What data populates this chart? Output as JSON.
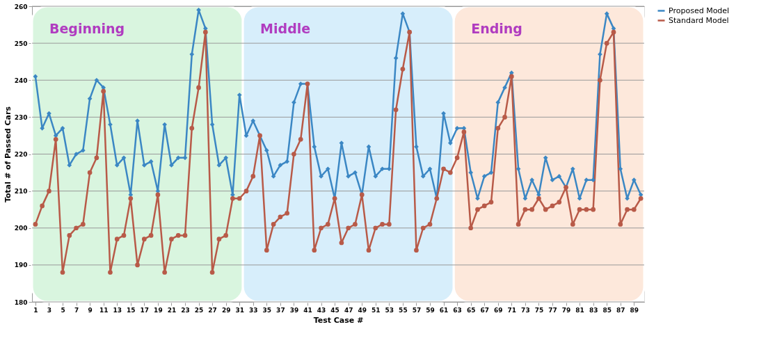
{
  "chart_data": {
    "type": "line",
    "xlabel": "Test Case #",
    "ylabel": "Total # of Passed Cars",
    "x": [
      1,
      2,
      3,
      4,
      5,
      6,
      7,
      8,
      9,
      10,
      11,
      12,
      13,
      14,
      15,
      16,
      17,
      18,
      19,
      20,
      21,
      22,
      23,
      24,
      25,
      26,
      27,
      28,
      29,
      30,
      31,
      32,
      33,
      34,
      35,
      36,
      37,
      38,
      39,
      40,
      41,
      42,
      43,
      44,
      45,
      46,
      47,
      48,
      49,
      50,
      51,
      52,
      53,
      54,
      55,
      56,
      57,
      58,
      59,
      60,
      61,
      62,
      63,
      64,
      65,
      66,
      67,
      68,
      69,
      70,
      71,
      72,
      73,
      74,
      75,
      76,
      77,
      78,
      79,
      80,
      81,
      82,
      83,
      84,
      85,
      86,
      87,
      88,
      89,
      90
    ],
    "series": [
      {
        "name": "Proposed Model",
        "color": "#3b87c4",
        "marker": "diamond",
        "values": [
          241,
          227,
          231,
          225,
          227,
          217,
          220,
          221,
          235,
          240,
          238,
          228,
          217,
          219,
          209,
          229,
          217,
          218,
          210,
          228,
          217,
          219,
          219,
          247,
          259,
          254,
          228,
          217,
          219,
          209,
          236,
          225,
          229,
          225,
          221,
          214,
          217,
          218,
          234,
          239,
          239,
          222,
          214,
          216,
          208,
          223,
          214,
          215,
          209,
          222,
          214,
          216,
          216,
          246,
          258,
          253,
          222,
          214,
          216,
          208,
          231,
          223,
          227,
          227,
          215,
          208,
          214,
          215,
          234,
          238,
          242,
          216,
          208,
          213,
          209,
          219,
          213,
          214,
          211,
          216,
          208,
          213,
          213,
          247,
          258,
          254,
          216,
          208,
          213,
          209
        ]
      },
      {
        "name": "Standard Model",
        "color": "#b85a48",
        "marker": "circle",
        "values": [
          201,
          206,
          210,
          224,
          188,
          198,
          200,
          201,
          215,
          219,
          237,
          188,
          197,
          198,
          208,
          190,
          197,
          198,
          209,
          188,
          197,
          198,
          198,
          227,
          238,
          253,
          188,
          197,
          198,
          208,
          208,
          210,
          214,
          225,
          194,
          201,
          203,
          204,
          220,
          224,
          239,
          194,
          200,
          201,
          208,
          196,
          200,
          201,
          209,
          194,
          200,
          201,
          201,
          232,
          243,
          253,
          194,
          200,
          201,
          208,
          216,
          215,
          219,
          226,
          200,
          205,
          206,
          207,
          227,
          230,
          241,
          201,
          205,
          205,
          208,
          205,
          206,
          207,
          211,
          201,
          205,
          205,
          205,
          240,
          250,
          253,
          201,
          205,
          205,
          208
        ]
      }
    ],
    "xlim": [
      0.5,
      90.5
    ],
    "xticks": [
      1,
      3,
      5,
      7,
      9,
      11,
      13,
      15,
      17,
      19,
      21,
      23,
      25,
      27,
      29,
      31,
      33,
      35,
      37,
      39,
      41,
      43,
      45,
      47,
      49,
      51,
      53,
      55,
      57,
      59,
      61,
      63,
      65,
      67,
      69,
      71,
      73,
      75,
      77,
      79,
      81,
      83,
      85,
      87,
      89
    ],
    "ylim": [
      180,
      260
    ],
    "yticks": [
      180,
      190,
      200,
      210,
      220,
      230,
      240,
      250,
      260
    ],
    "bands": [
      {
        "axis": "x",
        "from": 0.5,
        "to": 31.5,
        "label": "Beginning",
        "color": "#d9f5df"
      },
      {
        "axis": "x",
        "from": 31.5,
        "to": 62.5,
        "label": "Middle",
        "color": "#d7eefb"
      },
      {
        "axis": "x",
        "from": 62.5,
        "to": 90.5,
        "label": "Ending",
        "color": "#fde8db"
      }
    ],
    "grid": "y",
    "legend": "right",
    "line_style": "solid"
  }
}
